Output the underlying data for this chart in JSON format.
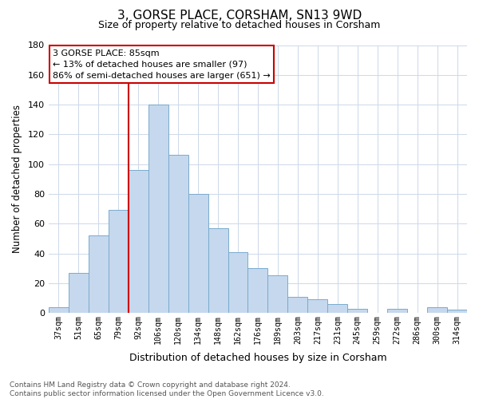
{
  "title": "3, GORSE PLACE, CORSHAM, SN13 9WD",
  "subtitle": "Size of property relative to detached houses in Corsham",
  "xlabel": "Distribution of detached houses by size in Corsham",
  "ylabel": "Number of detached properties",
  "bar_labels": [
    "37sqm",
    "51sqm",
    "65sqm",
    "79sqm",
    "92sqm",
    "106sqm",
    "120sqm",
    "134sqm",
    "148sqm",
    "162sqm",
    "176sqm",
    "189sqm",
    "203sqm",
    "217sqm",
    "231sqm",
    "245sqm",
    "259sqm",
    "272sqm",
    "286sqm",
    "300sqm",
    "314sqm"
  ],
  "bar_values": [
    4,
    27,
    52,
    69,
    96,
    140,
    106,
    80,
    57,
    41,
    30,
    25,
    11,
    9,
    6,
    3,
    0,
    3,
    0,
    4,
    2
  ],
  "bar_color": "#c5d8ed",
  "bar_edge_color": "#7aaace",
  "vline_x_index": 3.5,
  "vline_color": "#cc0000",
  "ylim": [
    0,
    180
  ],
  "yticks": [
    0,
    20,
    40,
    60,
    80,
    100,
    120,
    140,
    160,
    180
  ],
  "annotation_title": "3 GORSE PLACE: 85sqm",
  "annotation_line1": "← 13% of detached houses are smaller (97)",
  "annotation_line2": "86% of semi-detached houses are larger (651) →",
  "annotation_box_color": "#ffffff",
  "annotation_box_edge": "#cc0000",
  "footer_line1": "Contains HM Land Registry data © Crown copyright and database right 2024.",
  "footer_line2": "Contains public sector information licensed under the Open Government Licence v3.0.",
  "bg_color": "#ffffff",
  "grid_color": "#cdd8e8"
}
